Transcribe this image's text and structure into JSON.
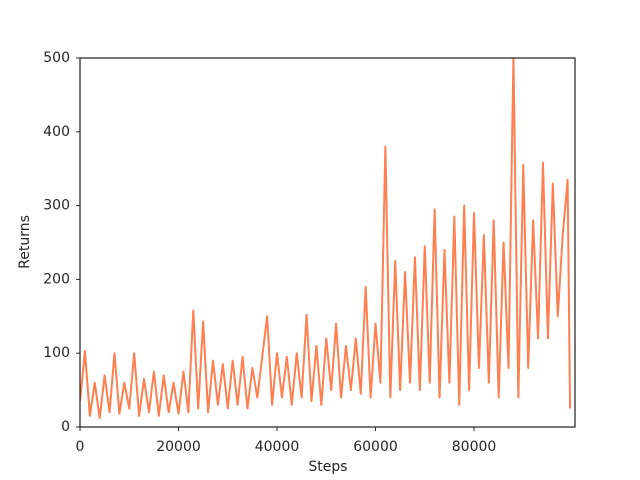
{
  "chart_data": {
    "type": "line",
    "xlabel": "Steps",
    "ylabel": "Returns",
    "color": "#ff7f50",
    "x": [
      0,
      1000,
      2000,
      3000,
      4000,
      5000,
      6000,
      7000,
      8000,
      9000,
      10000,
      11000,
      12000,
      13000,
      14000,
      15000,
      16000,
      17000,
      18000,
      19000,
      20000,
      21000,
      22000,
      23000,
      24000,
      25000,
      26000,
      27000,
      28000,
      29000,
      30000,
      31000,
      32000,
      33000,
      34000,
      35000,
      36000,
      37000,
      38000,
      39000,
      40000,
      41000,
      42000,
      43000,
      44000,
      45000,
      46000,
      47000,
      48000,
      49000,
      50000,
      51000,
      52000,
      53000,
      54000,
      55000,
      56000,
      57000,
      58000,
      59000,
      60000,
      61000,
      62000,
      63000,
      64000,
      65000,
      66000,
      67000,
      68000,
      69000,
      70000,
      71000,
      72000,
      73000,
      74000,
      75000,
      76000,
      77000,
      78000,
      79000,
      80000,
      81000,
      82000,
      83000,
      84000,
      85000,
      86000,
      87000,
      88000,
      89000,
      90000,
      91000,
      92000,
      93000,
      94000,
      95000,
      96000,
      97000,
      98000,
      99000,
      99500
    ],
    "values": [
      35,
      103,
      15,
      60,
      12,
      70,
      20,
      100,
      18,
      60,
      25,
      100,
      15,
      65,
      20,
      75,
      15,
      70,
      20,
      60,
      18,
      75,
      20,
      158,
      25,
      143,
      20,
      90,
      30,
      85,
      25,
      90,
      30,
      95,
      25,
      80,
      40,
      95,
      150,
      30,
      100,
      40,
      95,
      30,
      100,
      40,
      152,
      35,
      110,
      30,
      120,
      50,
      140,
      40,
      110,
      50,
      120,
      45,
      190,
      40,
      140,
      60,
      380,
      40,
      225,
      50,
      210,
      60,
      230,
      50,
      245,
      60,
      295,
      40,
      240,
      60,
      285,
      30,
      300,
      50,
      290,
      80,
      260,
      60,
      280,
      40,
      250,
      80,
      500,
      40,
      355,
      80,
      280,
      120,
      358,
      120,
      330,
      150,
      260,
      335,
      25
    ],
    "xlim": [
      0,
      100500
    ],
    "ylim": [
      0,
      500
    ],
    "xticks": [
      0,
      20000,
      40000,
      60000,
      80000
    ],
    "yticks": [
      0,
      100,
      200,
      300,
      400,
      500
    ]
  }
}
